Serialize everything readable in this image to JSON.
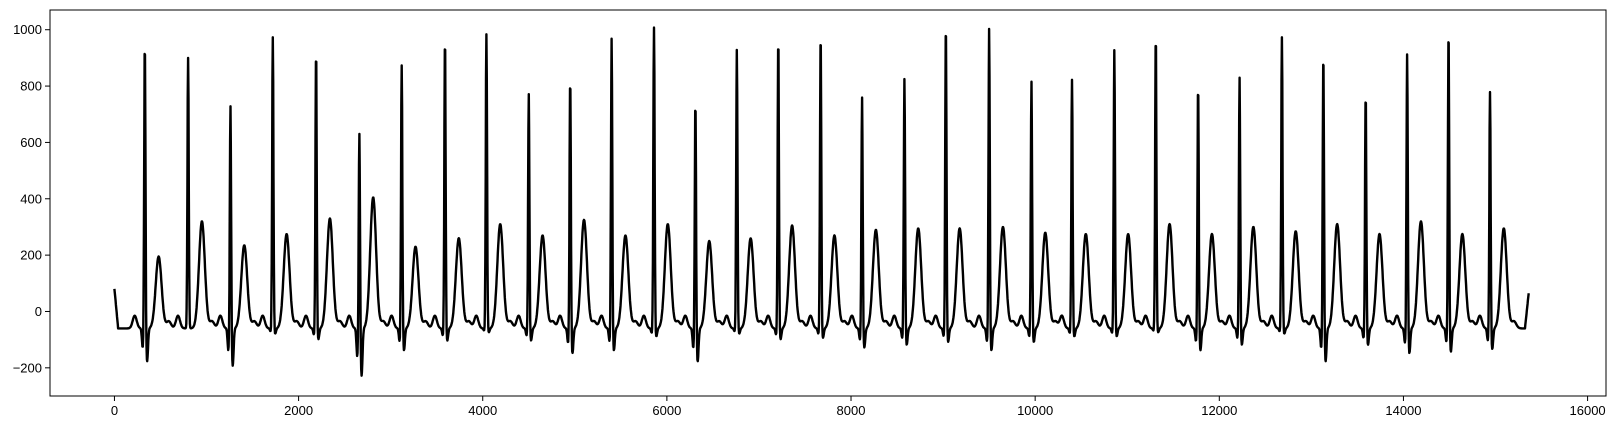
{
  "chart_data": {
    "type": "line",
    "title": "",
    "xlabel": "",
    "ylabel": "",
    "xlim": [
      -700,
      16200
    ],
    "ylim": [
      -300,
      1070
    ],
    "grid": false,
    "legend": "none",
    "line_color": "#000000",
    "x_ticks": [
      0,
      2000,
      4000,
      6000,
      8000,
      10000,
      12000,
      14000,
      16000
    ],
    "x_tick_labels": [
      "0",
      "2000",
      "4000",
      "6000",
      "8000",
      "10000",
      "12000",
      "14000",
      "16000"
    ],
    "y_ticks": [
      -200,
      0,
      200,
      400,
      600,
      800,
      1000
    ],
    "y_tick_labels": [
      "−200",
      "0",
      "200",
      "400",
      "600",
      "800",
      "1000"
    ],
    "series": [
      {
        "x_start": 0,
        "x_end": 15360,
        "baseline": -60,
        "beats": [
          {
            "r": 330,
            "peak": 945,
            "t": 195,
            "q": -180
          },
          {
            "r": 800,
            "peak": 880,
            "t": 320,
            "q": -60
          },
          {
            "r": 1260,
            "peak": 720,
            "t": 235,
            "q": -195
          },
          {
            "r": 1720,
            "peak": 955,
            "t": 275,
            "q": -80
          },
          {
            "r": 2190,
            "peak": 910,
            "t": 330,
            "q": -100
          },
          {
            "r": 2660,
            "peak": 625,
            "t": 405,
            "q": -230
          },
          {
            "r": 3120,
            "peak": 860,
            "t": 230,
            "q": -140
          },
          {
            "r": 3590,
            "peak": 955,
            "t": 260,
            "q": -105
          },
          {
            "r": 4040,
            "peak": 965,
            "t": 310,
            "q": -75
          },
          {
            "r": 4500,
            "peak": 755,
            "t": 270,
            "q": -105
          },
          {
            "r": 4950,
            "peak": 815,
            "t": 325,
            "q": -150
          },
          {
            "r": 5400,
            "peak": 955,
            "t": 270,
            "q": -140
          },
          {
            "r": 5860,
            "peak": 990,
            "t": 310,
            "q": -90
          },
          {
            "r": 6310,
            "peak": 735,
            "t": 250,
            "q": -180
          },
          {
            "r": 6760,
            "peak": 910,
            "t": 260,
            "q": -80
          },
          {
            "r": 7210,
            "peak": 955,
            "t": 305,
            "q": -100
          },
          {
            "r": 7670,
            "peak": 970,
            "t": 270,
            "q": -95
          },
          {
            "r": 8120,
            "peak": 745,
            "t": 290,
            "q": -130
          },
          {
            "r": 8580,
            "peak": 810,
            "t": 295,
            "q": -120
          },
          {
            "r": 9030,
            "peak": 1005,
            "t": 295,
            "q": -110
          },
          {
            "r": 9500,
            "peak": 990,
            "t": 300,
            "q": -140
          },
          {
            "r": 9960,
            "peak": 800,
            "t": 280,
            "q": -110
          },
          {
            "r": 10400,
            "peak": 805,
            "t": 275,
            "q": -90
          },
          {
            "r": 10860,
            "peak": 910,
            "t": 275,
            "q": -90
          },
          {
            "r": 11310,
            "peak": 965,
            "t": 310,
            "q": -75
          },
          {
            "r": 11770,
            "peak": 790,
            "t": 275,
            "q": -140
          },
          {
            "r": 12220,
            "peak": 815,
            "t": 300,
            "q": -120
          },
          {
            "r": 12680,
            "peak": 955,
            "t": 285,
            "q": -80
          },
          {
            "r": 13130,
            "peak": 905,
            "t": 310,
            "q": -180
          },
          {
            "r": 13590,
            "peak": 760,
            "t": 275,
            "q": -120
          },
          {
            "r": 14040,
            "peak": 900,
            "t": 320,
            "q": -150
          },
          {
            "r": 14490,
            "peak": 985,
            "t": 275,
            "q": -145
          },
          {
            "r": 14940,
            "peak": 765,
            "t": 295,
            "q": -135
          }
        ],
        "start_value": 80,
        "end_value": 65
      }
    ]
  }
}
